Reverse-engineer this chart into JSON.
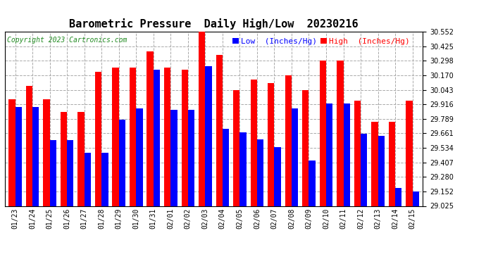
{
  "title": "Barometric Pressure  Daily High/Low  20230216",
  "copyright": "Copyright 2023 Cartronics.com",
  "legend_low": "Low  (Inches/Hg)",
  "legend_high": "High  (Inches/Hg)",
  "dates": [
    "01/23",
    "01/24",
    "01/25",
    "01/26",
    "01/27",
    "01/28",
    "01/29",
    "01/30",
    "01/31",
    "02/01",
    "02/02",
    "02/03",
    "02/04",
    "02/05",
    "02/06",
    "02/07",
    "02/08",
    "02/09",
    "02/10",
    "02/11",
    "02/12",
    "02/13",
    "02/14",
    "02/15"
  ],
  "high": [
    29.96,
    30.08,
    29.96,
    29.85,
    29.85,
    30.2,
    30.24,
    30.24,
    30.38,
    30.24,
    30.22,
    30.55,
    30.35,
    30.04,
    30.13,
    30.1,
    30.17,
    30.04,
    30.3,
    30.3,
    29.95,
    29.76,
    29.76,
    29.95
  ],
  "low": [
    29.89,
    29.89,
    29.6,
    29.6,
    29.49,
    29.49,
    29.78,
    29.88,
    30.22,
    29.87,
    29.87,
    30.25,
    29.7,
    29.67,
    29.61,
    29.54,
    29.88,
    29.42,
    29.92,
    29.92,
    29.66,
    29.64,
    29.18,
    29.15
  ],
  "ylim_min": 29.025,
  "ylim_max": 30.552,
  "yticks": [
    29.025,
    29.152,
    29.28,
    29.407,
    29.534,
    29.661,
    29.789,
    29.916,
    30.043,
    30.17,
    30.298,
    30.425,
    30.552
  ],
  "bar_width": 0.38,
  "high_color": "#ff0000",
  "low_color": "#0000ff",
  "bg_color": "#ffffff",
  "grid_color": "#aaaaaa",
  "title_fontsize": 11,
  "tick_fontsize": 7,
  "legend_fontsize": 8,
  "copyright_fontsize": 7
}
